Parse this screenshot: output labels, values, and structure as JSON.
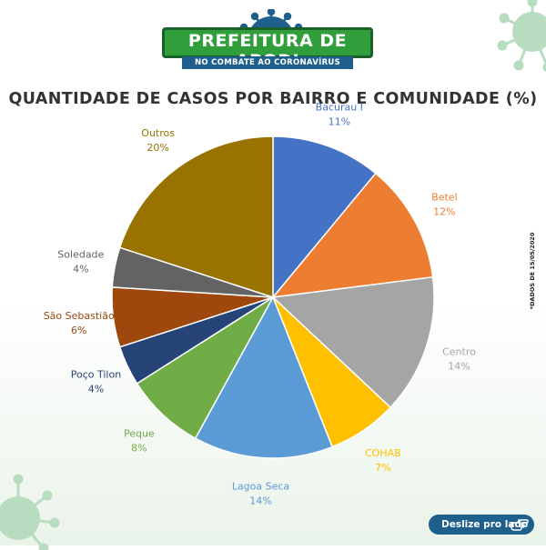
{
  "header": {
    "title": "PREFEITURA DE APODI",
    "subtitle": "NO COMBATE AO CORONAVÍRUS"
  },
  "footnote": "*DADOS DE 15/05/2020",
  "swipe_button": {
    "label": "Deslize pro lado",
    "icon": "pointing-hand-icon"
  },
  "colors": {
    "brand_green": "#2f9e3b",
    "brand_blue": "#1e5f8c",
    "virus_green": "#b8dcc0"
  },
  "chart_data": {
    "type": "pie",
    "title": "QUANTIDADE DE CASOS POR BAIRRO E COMUNIDADE (%)",
    "unit": "%",
    "slices": [
      {
        "label": "Bacurau I",
        "value": 11,
        "color": "#4472c4"
      },
      {
        "label": "Betel",
        "value": 12,
        "color": "#ed7d31"
      },
      {
        "label": "Centro",
        "value": 14,
        "color": "#a5a5a5"
      },
      {
        "label": "COHAB",
        "value": 7,
        "color": "#ffc000"
      },
      {
        "label": "Lagoa Seca",
        "value": 14,
        "color": "#5b9bd5"
      },
      {
        "label": "Peque",
        "value": 8,
        "color": "#70ad47"
      },
      {
        "label": "Poço Tilon",
        "value": 4,
        "color": "#264478"
      },
      {
        "label": "São Sebastião",
        "value": 6,
        "color": "#9e480e"
      },
      {
        "label": "Soledade",
        "value": 4,
        "color": "#636363"
      },
      {
        "label": "Outros",
        "value": 20,
        "color": "#997300"
      }
    ],
    "labels_color": {
      "Bacurau I": "#4472c4",
      "Betel": "#ed7d31",
      "Centro": "#a5a5a5",
      "COHAB": "#ffc000",
      "Lagoa Seca": "#5b9bd5",
      "Peque": "#70ad47",
      "Poço Tilon": "#264478",
      "São Sebastião": "#9e480e",
      "Soledade": "#636363",
      "Outros": "#997300"
    }
  }
}
